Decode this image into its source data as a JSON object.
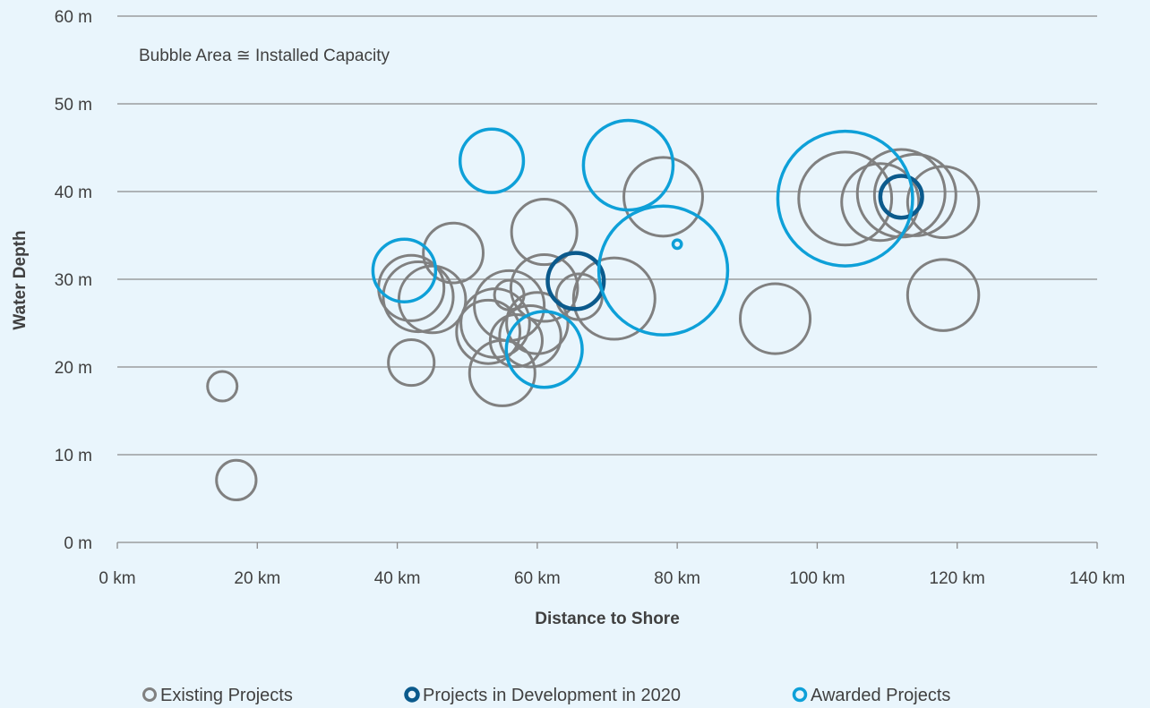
{
  "chart_data": {
    "type": "bubble",
    "annotation": "Bubble Area ≅ Installed Capacity",
    "xlabel": "Distance to Shore",
    "ylabel": "Water Depth",
    "xlim": [
      0,
      140
    ],
    "ylim": [
      0,
      60
    ],
    "x_ticks": [
      0,
      20,
      40,
      60,
      80,
      100,
      120,
      140
    ],
    "x_tick_labels": [
      "0 km",
      "20 km",
      "40 km",
      "60 km",
      "80 km",
      "100 km",
      "120 km",
      "140 km"
    ],
    "y_ticks": [
      0,
      10,
      20,
      30,
      40,
      50,
      60
    ],
    "y_tick_labels": [
      "0 m",
      "10 m",
      "20 m",
      "30 m",
      "40 m",
      "50 m",
      "60 m"
    ],
    "grid": "horizontal",
    "legend_position": "bottom",
    "series": [
      {
        "name": "Existing Projects",
        "color": "#808080",
        "points": [
          {
            "x": 15,
            "y": 17.8,
            "size": 1.0
          },
          {
            "x": 17,
            "y": 7.1,
            "size": 1.8
          },
          {
            "x": 42,
            "y": 20.5,
            "size": 2.4
          },
          {
            "x": 42,
            "y": 29,
            "size": 4.9
          },
          {
            "x": 43,
            "y": 28,
            "size": 5.6
          },
          {
            "x": 45,
            "y": 27.7,
            "size": 5.1
          },
          {
            "x": 48,
            "y": 33,
            "size": 4.1
          },
          {
            "x": 53,
            "y": 24,
            "size": 4.6
          },
          {
            "x": 54,
            "y": 25,
            "size": 5.4
          },
          {
            "x": 55,
            "y": 19.3,
            "size": 4.9
          },
          {
            "x": 56,
            "y": 27,
            "size": 5.6
          },
          {
            "x": 56,
            "y": 28.2,
            "size": 1.0
          },
          {
            "x": 57,
            "y": 23,
            "size": 3.1
          },
          {
            "x": 59,
            "y": 23.5,
            "size": 4.3
          },
          {
            "x": 60,
            "y": 25,
            "size": 4.3
          },
          {
            "x": 61,
            "y": 35.4,
            "size": 4.9
          },
          {
            "x": 61,
            "y": 29,
            "size": 5.1
          },
          {
            "x": 66,
            "y": 28,
            "size": 2.4
          },
          {
            "x": 71,
            "y": 27.8,
            "size": 7.6
          },
          {
            "x": 78,
            "y": 39.4,
            "size": 7.1
          },
          {
            "x": 94,
            "y": 25.5,
            "size": 5.6
          },
          {
            "x": 104,
            "y": 39.2,
            "size": 9.9
          },
          {
            "x": 109,
            "y": 38.8,
            "size": 6.8
          },
          {
            "x": 112,
            "y": 39.8,
            "size": 8.8
          },
          {
            "x": 114,
            "y": 39.6,
            "size": 7.6
          },
          {
            "x": 118,
            "y": 38.8,
            "size": 5.8
          },
          {
            "x": 118,
            "y": 28.2,
            "size": 5.8
          }
        ]
      },
      {
        "name": "Projects in Development in 2020",
        "color": "#0b5a8c",
        "points": [
          {
            "x": 65.5,
            "y": 29.8,
            "size": 3.6
          },
          {
            "x": 112,
            "y": 39.4,
            "size": 2.0
          }
        ]
      },
      {
        "name": "Awarded Projects",
        "color": "#0ea0d8",
        "points": [
          {
            "x": 41,
            "y": 31,
            "size": 4.5
          },
          {
            "x": 53.5,
            "y": 43.5,
            "size": 4.6
          },
          {
            "x": 61,
            "y": 22,
            "size": 6.6
          },
          {
            "x": 73,
            "y": 43,
            "size": 9.2
          },
          {
            "x": 78,
            "y": 31,
            "size": 19.0
          },
          {
            "x": 80,
            "y": 34,
            "size": 0.08
          },
          {
            "x": 104,
            "y": 39.2,
            "size": 20.8
          }
        ]
      }
    ]
  }
}
